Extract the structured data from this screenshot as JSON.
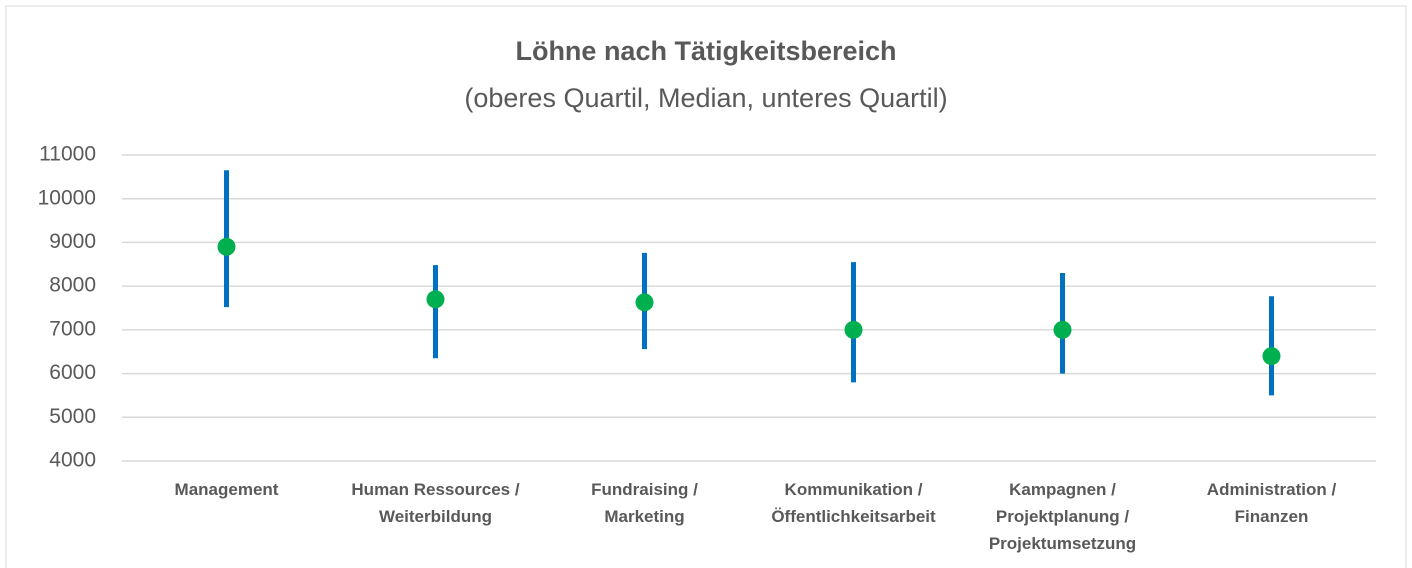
{
  "chart_data": {
    "type": "range",
    "title": "Löhne nach Tätigkeitsbereich",
    "subtitle": "(oberes Quartil, Median, unteres Quartil)",
    "categories": [
      "Management",
      "Human Ressources /\nWeiterbildung",
      "Fundraising /\nMarketing",
      "Kommunikation /\nÖffentlichkeitsarbeit",
      "Kampagnen /\nProjektplanung /\nProjektumsetzung",
      "Administration /\nFinanzen"
    ],
    "upper_quartile": [
      10650,
      8480,
      8760,
      8550,
      8300,
      7770
    ],
    "median": [
      8900,
      7700,
      7630,
      7000,
      7000,
      6400
    ],
    "lower_quartile": [
      7520,
      6350,
      6560,
      5800,
      6000,
      5500
    ],
    "range_color": "#0070c0",
    "median_color": "#00b050",
    "ylim": [
      4000,
      11000
    ],
    "yticks": [
      4000,
      5000,
      6000,
      7000,
      8000,
      9000,
      10000,
      11000
    ],
    "grid": true
  }
}
